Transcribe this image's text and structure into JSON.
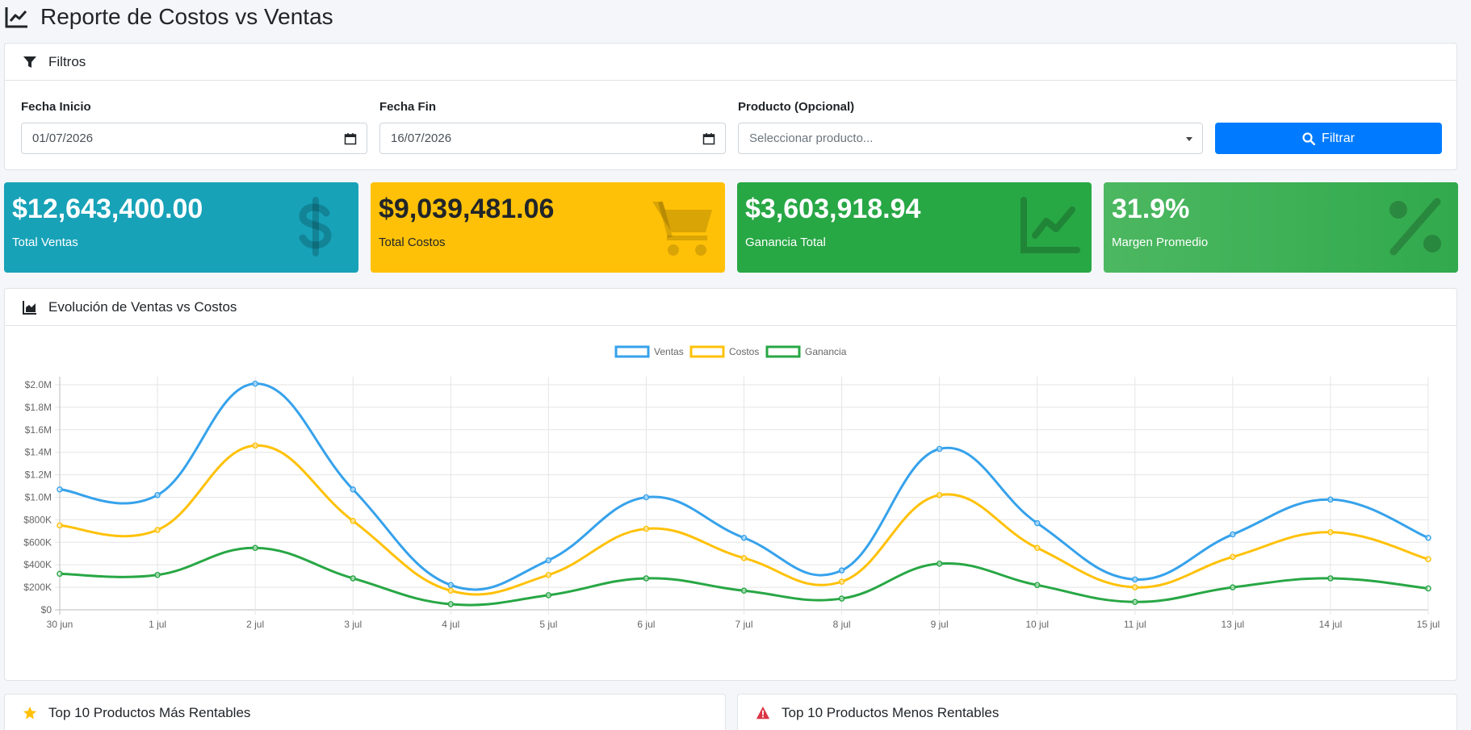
{
  "page": {
    "title": "Reporte de Costos vs Ventas"
  },
  "filters": {
    "header": "Filtros",
    "start_date_label": "Fecha Inicio",
    "start_date_value": "01/07/2026",
    "end_date_label": "Fecha Fin",
    "end_date_value": "16/07/2026",
    "product_label": "Producto (Opcional)",
    "product_placeholder": "Seleccionar producto...",
    "filter_button": "Filtrar"
  },
  "stats": [
    {
      "value": "$12,643,400.00",
      "label": "Total Ventas",
      "icon": "dollar-icon",
      "color": "#17a2b8"
    },
    {
      "value": "$9,039,481.06",
      "label": "Total Costos",
      "icon": "cart-icon",
      "color": "#ffc107"
    },
    {
      "value": "$3,603,918.94",
      "label": "Ganancia Total",
      "icon": "chart-line-icon",
      "color": "#28a745"
    },
    {
      "value": "31.9%",
      "label": "Margen Promedio",
      "icon": "percent-icon",
      "color": "#28a745"
    }
  ],
  "chart_card": {
    "header": "Evolución de Ventas vs Costos"
  },
  "chart_data": {
    "type": "line",
    "categories": [
      "30 jun",
      "1 jul",
      "2 jul",
      "3 jul",
      "4 jul",
      "5 jul",
      "6 jul",
      "7 jul",
      "8 jul",
      "9 jul",
      "10 jul",
      "11 jul",
      "13 jul",
      "14 jul",
      "15 jul"
    ],
    "series": [
      {
        "name": "Ventas",
        "color": "#36a2eb",
        "values": [
          1070000,
          1020000,
          2010000,
          1070000,
          220000,
          440000,
          1000000,
          640000,
          350000,
          1430000,
          770000,
          270000,
          670000,
          980000,
          640000
        ]
      },
      {
        "name": "Costos",
        "color": "#ffc107",
        "values": [
          750000,
          710000,
          1460000,
          790000,
          170000,
          310000,
          720000,
          460000,
          250000,
          1020000,
          550000,
          200000,
          470000,
          690000,
          450000
        ]
      },
      {
        "name": "Ganancia",
        "color": "#28a745",
        "values": [
          320000,
          310000,
          550000,
          280000,
          50000,
          130000,
          280000,
          170000,
          100000,
          410000,
          220000,
          70000,
          200000,
          280000,
          190000
        ]
      }
    ],
    "yticks": [
      "$0",
      "$200K",
      "$400K",
      "$600K",
      "$800K",
      "$1.0M",
      "$1.2M",
      "$1.4M",
      "$1.6M",
      "$1.8M",
      "$2.0M"
    ],
    "ylim": [
      0,
      2000000
    ],
    "grid": true,
    "legend": "top"
  },
  "bottom": {
    "left_header": "Top 10 Productos Más Rentables",
    "right_header": "Top 10 Productos Menos Rentables"
  }
}
